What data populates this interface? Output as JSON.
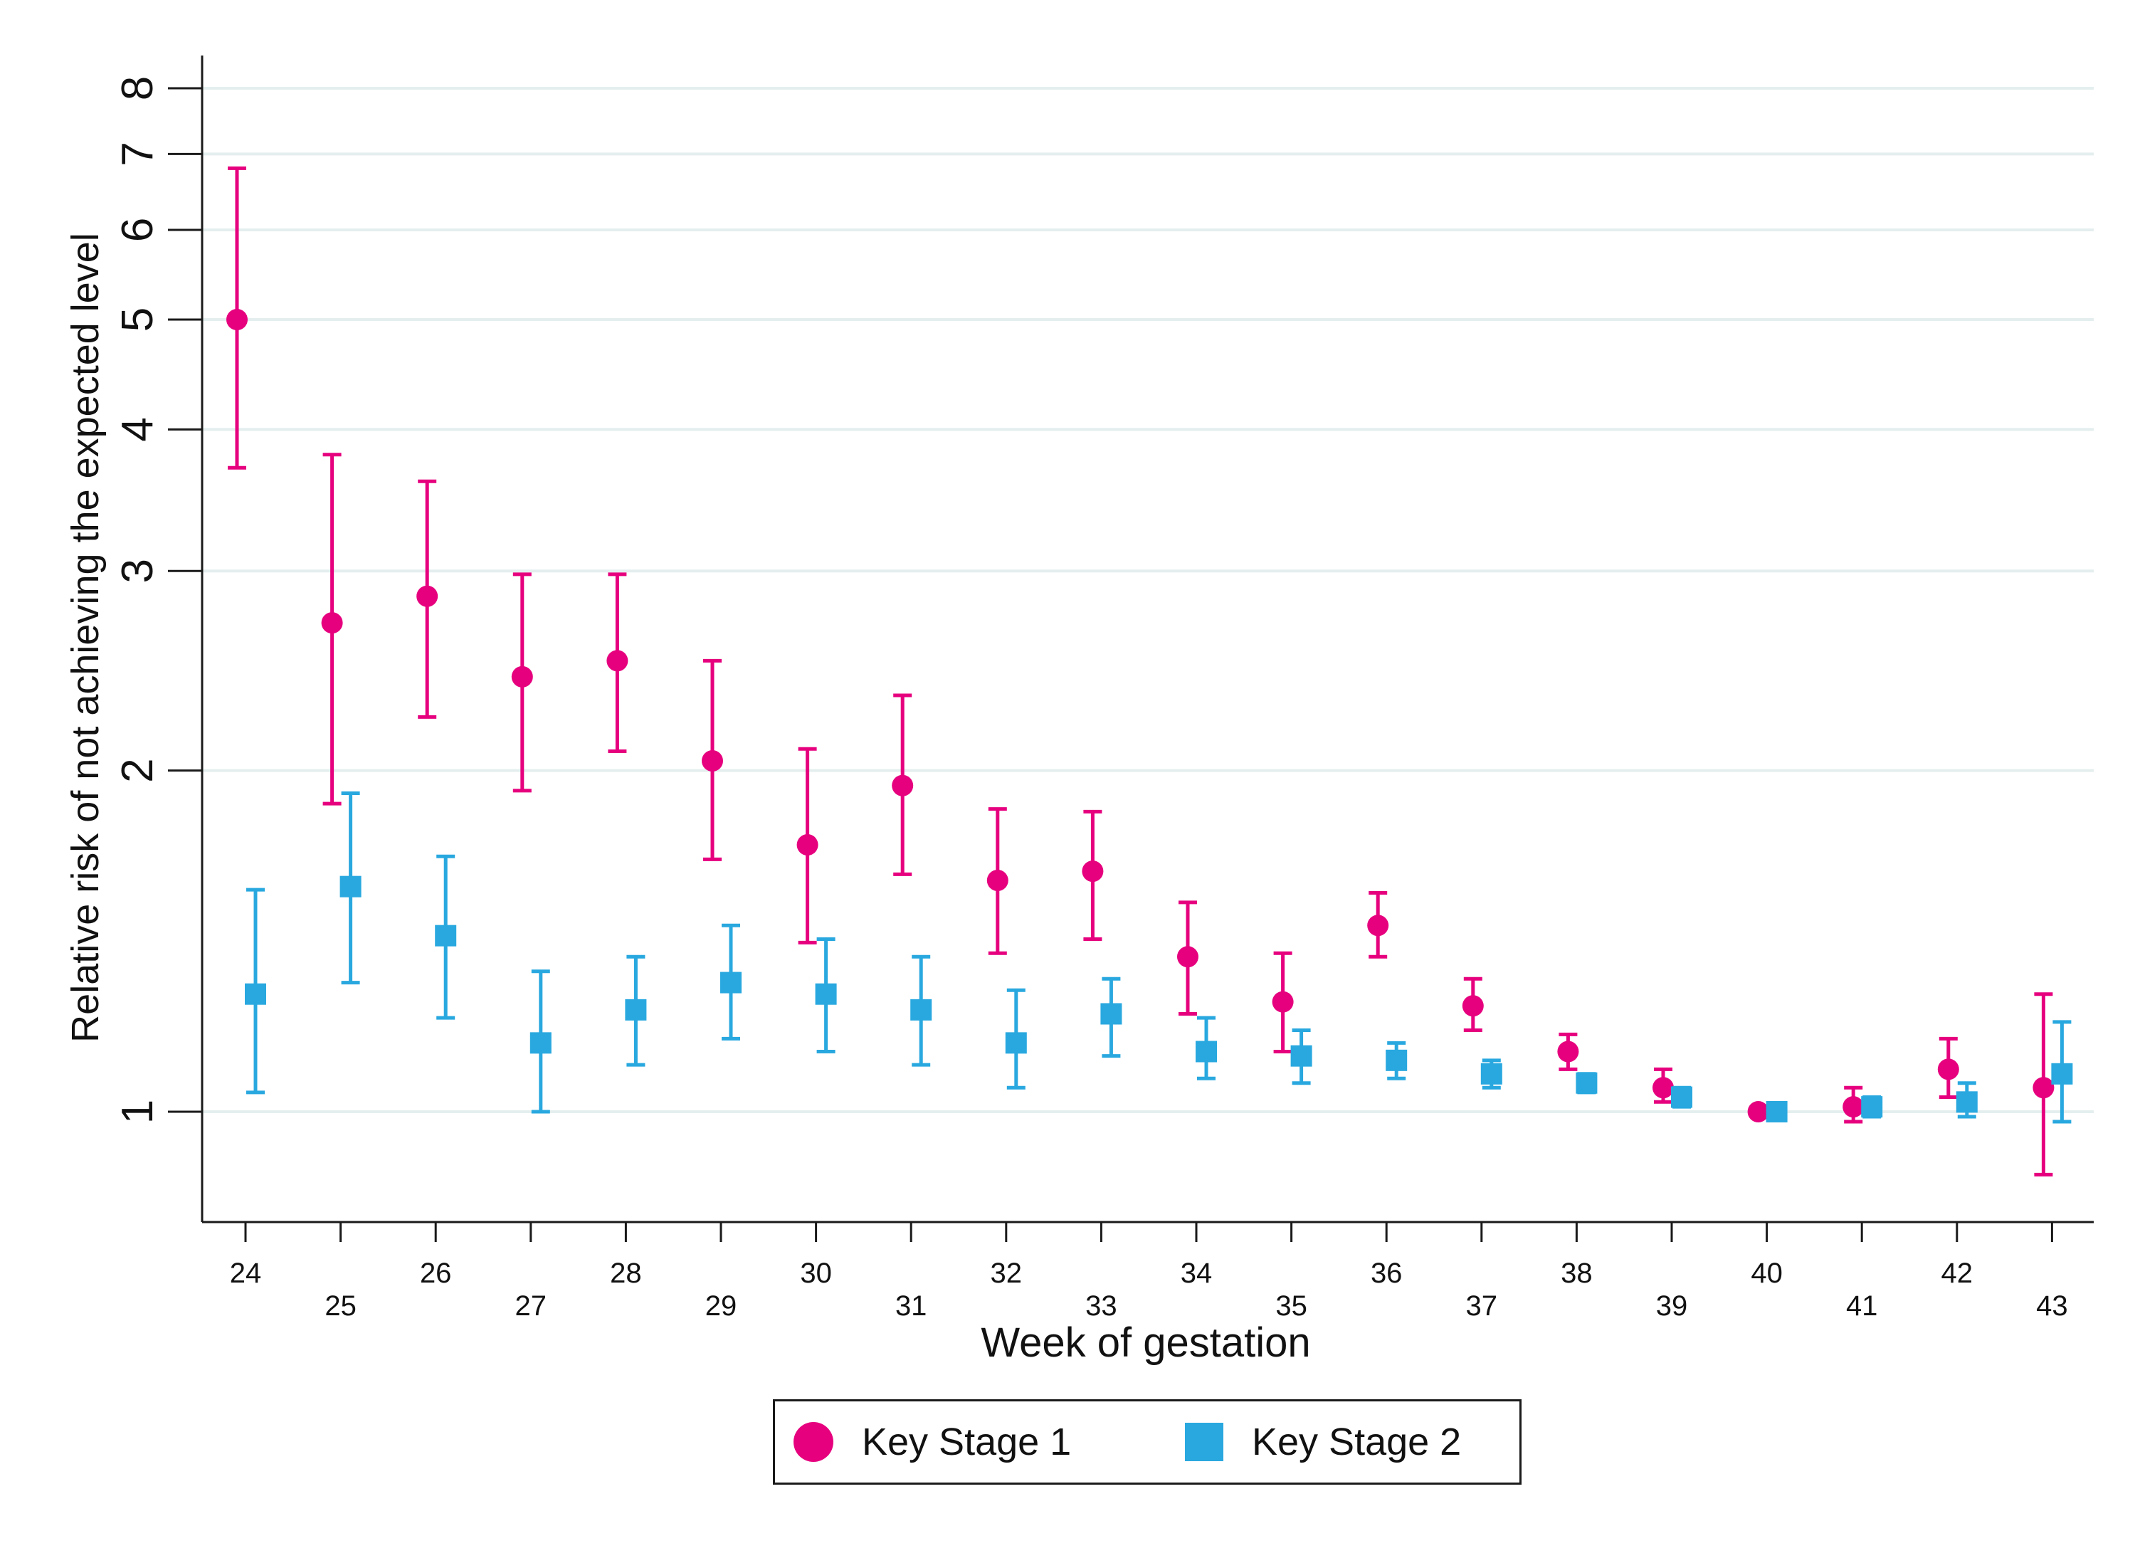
{
  "chart_data": {
    "type": "scatter",
    "title": "",
    "xlabel": "Week of gestation",
    "ylabel": "Relative risk of not achieving the expected level",
    "y_scale": "log",
    "ylim": [
      0.86,
      8.6
    ],
    "y_ticks": [
      1,
      2,
      3,
      4,
      5,
      6,
      7,
      8
    ],
    "x_ticks": [
      24,
      25,
      26,
      27,
      28,
      29,
      30,
      31,
      32,
      33,
      34,
      35,
      36,
      37,
      38,
      39,
      40,
      41,
      42,
      43
    ],
    "grid": true,
    "legend_position": "bottom",
    "series": [
      {
        "name": "Key Stage 1",
        "color": "#e6007e",
        "marker": "circle",
        "points": [
          {
            "x": 24,
            "y": 5.0,
            "lo": 3.7,
            "hi": 6.8
          },
          {
            "x": 25,
            "y": 2.7,
            "lo": 1.87,
            "hi": 3.8
          },
          {
            "x": 26,
            "y": 2.85,
            "lo": 2.23,
            "hi": 3.6
          },
          {
            "x": 27,
            "y": 2.42,
            "lo": 1.92,
            "hi": 2.98
          },
          {
            "x": 28,
            "y": 2.5,
            "lo": 2.08,
            "hi": 2.98
          },
          {
            "x": 29,
            "y": 2.04,
            "lo": 1.67,
            "hi": 2.5
          },
          {
            "x": 30,
            "y": 1.72,
            "lo": 1.41,
            "hi": 2.09
          },
          {
            "x": 31,
            "y": 1.94,
            "lo": 1.62,
            "hi": 2.33
          },
          {
            "x": 32,
            "y": 1.6,
            "lo": 1.38,
            "hi": 1.85
          },
          {
            "x": 33,
            "y": 1.63,
            "lo": 1.42,
            "hi": 1.84
          },
          {
            "x": 34,
            "y": 1.37,
            "lo": 1.22,
            "hi": 1.53
          },
          {
            "x": 35,
            "y": 1.25,
            "lo": 1.13,
            "hi": 1.38
          },
          {
            "x": 36,
            "y": 1.46,
            "lo": 1.37,
            "hi": 1.56
          },
          {
            "x": 37,
            "y": 1.24,
            "lo": 1.18,
            "hi": 1.31
          },
          {
            "x": 38,
            "y": 1.13,
            "lo": 1.09,
            "hi": 1.17
          },
          {
            "x": 39,
            "y": 1.05,
            "lo": 1.02,
            "hi": 1.09
          },
          {
            "x": 40,
            "y": 1.0,
            "lo": 1.0,
            "hi": 1.0
          },
          {
            "x": 41,
            "y": 1.01,
            "lo": 0.98,
            "hi": 1.05
          },
          {
            "x": 42,
            "y": 1.09,
            "lo": 1.03,
            "hi": 1.16
          },
          {
            "x": 43,
            "y": 1.05,
            "lo": 0.88,
            "hi": 1.27
          }
        ]
      },
      {
        "name": "Key Stage 2",
        "color": "#29a8df",
        "marker": "square",
        "points": [
          {
            "x": 24,
            "y": 1.27,
            "lo": 1.04,
            "hi": 1.57
          },
          {
            "x": 25,
            "y": 1.58,
            "lo": 1.3,
            "hi": 1.91
          },
          {
            "x": 26,
            "y": 1.43,
            "lo": 1.21,
            "hi": 1.68
          },
          {
            "x": 27,
            "y": 1.15,
            "lo": 1.0,
            "hi": 1.33
          },
          {
            "x": 28,
            "y": 1.23,
            "lo": 1.1,
            "hi": 1.37
          },
          {
            "x": 29,
            "y": 1.3,
            "lo": 1.16,
            "hi": 1.46
          },
          {
            "x": 30,
            "y": 1.27,
            "lo": 1.13,
            "hi": 1.42
          },
          {
            "x": 31,
            "y": 1.23,
            "lo": 1.1,
            "hi": 1.37
          },
          {
            "x": 32,
            "y": 1.15,
            "lo": 1.05,
            "hi": 1.28
          },
          {
            "x": 33,
            "y": 1.22,
            "lo": 1.12,
            "hi": 1.31
          },
          {
            "x": 34,
            "y": 1.13,
            "lo": 1.07,
            "hi": 1.21
          },
          {
            "x": 35,
            "y": 1.12,
            "lo": 1.06,
            "hi": 1.18
          },
          {
            "x": 36,
            "y": 1.11,
            "lo": 1.07,
            "hi": 1.15
          },
          {
            "x": 37,
            "y": 1.08,
            "lo": 1.05,
            "hi": 1.11
          },
          {
            "x": 38,
            "y": 1.06,
            "lo": 1.04,
            "hi": 1.08
          },
          {
            "x": 39,
            "y": 1.03,
            "lo": 1.01,
            "hi": 1.05
          },
          {
            "x": 40,
            "y": 1.0,
            "lo": 1.0,
            "hi": 1.0
          },
          {
            "x": 41,
            "y": 1.01,
            "lo": 0.99,
            "hi": 1.03
          },
          {
            "x": 42,
            "y": 1.02,
            "lo": 0.99,
            "hi": 1.06
          },
          {
            "x": 43,
            "y": 1.08,
            "lo": 0.98,
            "hi": 1.2
          }
        ]
      }
    ]
  }
}
